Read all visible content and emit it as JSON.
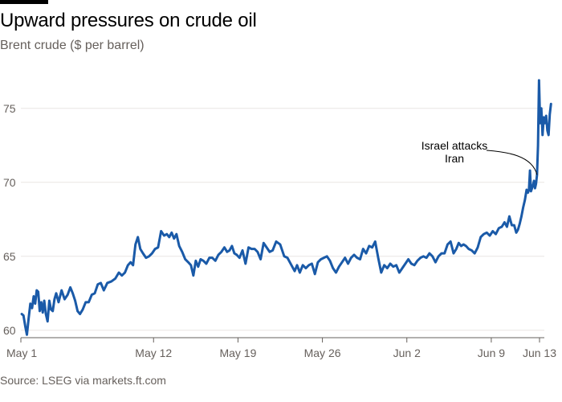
{
  "header": {
    "title": "Upward pressures on crude oil",
    "subtitle": "Brent crude ($ per barrel)"
  },
  "footer": {
    "source": "Source: LSEG via markets.ft.com"
  },
  "colors": {
    "line": "#1a5aa8",
    "grid": "#e9e6e3",
    "axis": "#66605c"
  },
  "chart_data": {
    "type": "line",
    "title": "Upward pressures on crude oil",
    "subtitle": "Brent crude ($ per barrel)",
    "ylim": [
      59.5,
      77
    ],
    "y_ticks": [
      60,
      65,
      70,
      75
    ],
    "y_tick_labels": [
      "60",
      "65",
      "70",
      "75"
    ],
    "x_ticks": [
      "2025-05-01",
      "2025-05-12",
      "2025-05-19",
      "2025-05-26",
      "2025-06-02",
      "2025-06-09",
      "2025-06-13"
    ],
    "x_tick_labels": [
      "May 1",
      "May 12",
      "May 19",
      "May 26",
      "Jun 2",
      "Jun 9",
      "Jun 13"
    ],
    "grid": true,
    "series": [
      {
        "x": [
          "2025-05-01",
          "2025-05-01",
          "2025-05-01",
          "2025-05-01",
          "2025-05-01",
          "2025-05-01",
          "2025-05-01",
          "2025-05-02",
          "2025-05-02",
          "2025-05-02",
          "2025-05-02",
          "2025-05-02",
          "2025-05-02",
          "2025-05-02",
          "2025-05-02",
          "2025-05-03",
          "2025-05-03",
          "2025-05-03",
          "2025-05-03",
          "2025-05-03",
          "2025-05-03",
          "2025-05-03",
          "2025-05-04",
          "2025-05-04",
          "2025-05-04",
          "2025-05-04",
          "2025-05-05",
          "2025-05-05",
          "2025-05-05",
          "2025-05-05",
          "2025-05-05",
          "2025-05-06",
          "2025-05-06",
          "2025-05-06",
          "2025-05-06",
          "2025-05-07",
          "2025-05-07",
          "2025-05-07",
          "2025-05-07",
          "2025-05-08",
          "2025-05-08",
          "2025-05-08",
          "2025-05-09",
          "2025-05-09",
          "2025-05-09",
          "2025-05-09",
          "2025-05-10",
          "2025-05-10",
          "2025-05-10",
          "2025-05-10",
          "2025-05-10",
          "2025-05-11",
          "2025-05-11",
          "2025-05-11",
          "2025-05-11",
          "2025-05-12",
          "2025-05-12",
          "2025-05-12",
          "2025-05-12",
          "2025-05-13",
          "2025-05-13",
          "2025-05-13",
          "2025-05-13",
          "2025-05-13",
          "2025-05-14",
          "2025-05-14",
          "2025-05-14",
          "2025-05-14",
          "2025-05-15",
          "2025-05-15",
          "2025-05-15",
          "2025-05-15",
          "2025-05-15",
          "2025-05-16",
          "2025-05-16",
          "2025-05-16",
          "2025-05-16",
          "2025-05-17",
          "2025-05-17",
          "2025-05-17",
          "2025-05-17",
          "2025-05-18",
          "2025-05-18",
          "2025-05-18",
          "2025-05-18",
          "2025-05-18",
          "2025-05-19",
          "2025-05-19",
          "2025-05-19",
          "2025-05-19",
          "2025-05-20",
          "2025-05-20",
          "2025-05-20",
          "2025-05-20",
          "2025-05-21",
          "2025-05-21",
          "2025-05-21",
          "2025-05-21",
          "2025-05-22",
          "2025-05-22",
          "2025-05-22",
          "2025-05-23",
          "2025-05-23",
          "2025-05-23",
          "2025-05-23",
          "2025-05-23",
          "2025-05-24",
          "2025-05-24",
          "2025-05-24",
          "2025-05-24",
          "2025-05-25",
          "2025-05-25",
          "2025-05-25",
          "2025-05-25",
          "2025-05-26",
          "2025-05-26",
          "2025-05-26",
          "2025-05-26",
          "2025-05-27",
          "2025-05-27",
          "2025-05-27",
          "2025-05-27",
          "2025-05-28",
          "2025-05-28",
          "2025-05-28",
          "2025-05-28",
          "2025-05-29",
          "2025-05-29",
          "2025-05-29",
          "2025-05-29",
          "2025-05-30",
          "2025-05-30",
          "2025-05-30",
          "2025-05-30",
          "2025-05-31",
          "2025-05-31",
          "2025-05-31",
          "2025-05-31",
          "2025-06-01",
          "2025-06-01",
          "2025-06-01",
          "2025-06-01",
          "2025-06-02",
          "2025-06-02",
          "2025-06-02",
          "2025-06-02",
          "2025-06-03",
          "2025-06-03",
          "2025-06-03",
          "2025-06-03",
          "2025-06-04",
          "2025-06-04",
          "2025-06-04",
          "2025-06-04",
          "2025-06-05",
          "2025-06-05",
          "2025-06-05",
          "2025-06-05",
          "2025-06-06",
          "2025-06-06",
          "2025-06-06",
          "2025-06-06",
          "2025-06-06",
          "2025-06-07",
          "2025-06-07",
          "2025-06-07",
          "2025-06-07",
          "2025-06-08",
          "2025-06-08",
          "2025-06-08",
          "2025-06-08",
          "2025-06-09",
          "2025-06-09",
          "2025-06-09",
          "2025-06-09",
          "2025-06-10",
          "2025-06-10",
          "2025-06-10",
          "2025-06-10",
          "2025-06-10",
          "2025-06-11",
          "2025-06-11",
          "2025-06-11",
          "2025-06-11",
          "2025-06-11",
          "2025-06-11",
          "2025-06-11",
          "2025-06-12",
          "2025-06-12",
          "2025-06-12",
          "2025-06-12",
          "2025-06-12",
          "2025-06-12",
          "2025-06-12",
          "2025-06-12",
          "2025-06-12",
          "2025-06-12",
          "2025-06-12",
          "2025-06-12",
          "2025-06-13",
          "2025-06-13",
          "2025-06-13",
          "2025-06-13",
          "2025-06-13",
          "2025-06-13",
          "2025-06-13",
          "2025-06-13",
          "2025-06-13",
          "2025-06-13"
        ],
        "y": [
          61.1,
          61.0,
          60.3,
          59.7,
          60.8,
          61.8,
          61.5,
          62.3,
          61.8,
          62.7,
          62.6,
          61.3,
          61.9,
          61.2,
          62.0,
          61.1,
          60.6,
          62.0,
          61.4,
          61.3,
          62.1,
          62.5,
          61.9,
          62.7,
          62.1,
          62.4,
          62.9,
          62.5,
          62.0,
          61.3,
          61.1,
          61.4,
          61.9,
          61.9,
          62.4,
          62.5,
          63.1,
          63.2,
          62.7,
          63.2,
          63.3,
          63.5,
          63.9,
          63.7,
          63.9,
          64.4,
          64.6,
          64.4,
          65.8,
          66.3,
          65.5,
          65.2,
          64.9,
          65.0,
          65.2,
          65.5,
          65.6,
          66.7,
          66.4,
          66.5,
          66.3,
          66.6,
          66.2,
          66.5,
          65.7,
          65.3,
          64.8,
          64.6,
          64.4,
          63.7,
          64.7,
          64.3,
          64.8,
          64.7,
          64.5,
          64.9,
          64.9,
          64.7,
          65.1,
          65.3,
          65.6,
          65.3,
          65.4,
          65.7,
          65.2,
          65.1,
          64.9,
          65.4,
          64.5,
          65.6,
          65.5,
          65.5,
          65.3,
          64.8,
          65.9,
          65.6,
          65.3,
          65.4,
          66.0,
          65.8,
          65.0,
          64.9,
          64.6,
          64.3,
          64.0,
          64.4,
          63.9,
          64.4,
          64.2,
          64.4,
          64.5,
          63.8,
          64.6,
          64.8,
          64.9,
          65.0,
          64.7,
          64.2,
          63.9,
          64.3,
          64.6,
          64.9,
          64.5,
          64.9,
          65.1,
          64.9,
          64.8,
          65.5,
          65.2,
          65.7,
          65.6,
          66.0,
          64.9,
          63.9,
          64.4,
          64.2,
          64.5,
          64.3,
          64.4,
          63.9,
          64.2,
          64.5,
          64.8,
          64.5,
          64.4,
          64.7,
          64.9,
          65.0,
          64.9,
          65.2,
          65.0,
          64.6,
          65.0,
          65.2,
          65.2,
          65.8,
          66.0,
          65.2,
          65.5,
          65.9,
          65.7,
          65.8,
          65.7,
          65.5,
          65.4,
          65.2,
          65.6,
          66.3,
          66.5,
          66.6,
          66.4,
          66.7,
          66.5,
          66.9,
          67.0,
          67.3,
          67.0,
          67.7,
          67.1,
          67.1,
          66.6,
          66.8,
          67.2,
          67.7,
          68.3,
          68.8,
          69.5,
          69.3,
          69.5,
          70.8,
          69.4,
          69.6,
          69.8,
          70.1,
          69.6,
          69.9,
          70.5,
          72.5,
          76.9,
          74.0,
          75.0,
          73.2,
          74.4,
          74.0,
          74.5,
          73.5,
          73.2,
          74.6,
          75.3
        ],
        "name": ""
      }
    ],
    "annotations": [
      {
        "text_lines": [
          "Israel attacks",
          "Iran"
        ],
        "x": "2025-06-12",
        "y": 70.4
      }
    ]
  }
}
